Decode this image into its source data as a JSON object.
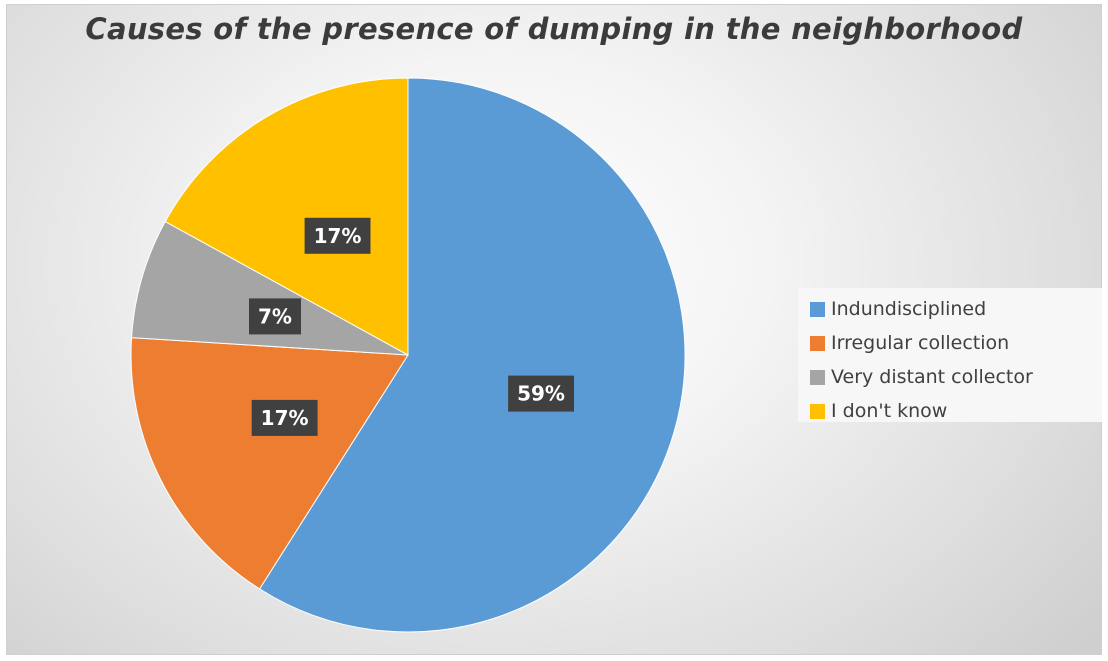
{
  "chart_data": {
    "type": "pie",
    "title": "Causes of the presence of dumping in the neighborhood",
    "start_angle_deg": 0,
    "direction": "clockwise",
    "legend_position": "right",
    "slices": [
      {
        "name": "Indundisciplined",
        "value": 59,
        "label": "59%",
        "color": "#5b9bd5"
      },
      {
        "name": "Irregular collection",
        "value": 17,
        "label": "17%",
        "color": "#ed7d31"
      },
      {
        "name": "Very distant collector",
        "value": 7,
        "label": "7%",
        "color": "#a5a5a5"
      },
      {
        "name": "I don't know",
        "value": 17,
        "label": "17%",
        "color": "#ffc000"
      }
    ]
  }
}
